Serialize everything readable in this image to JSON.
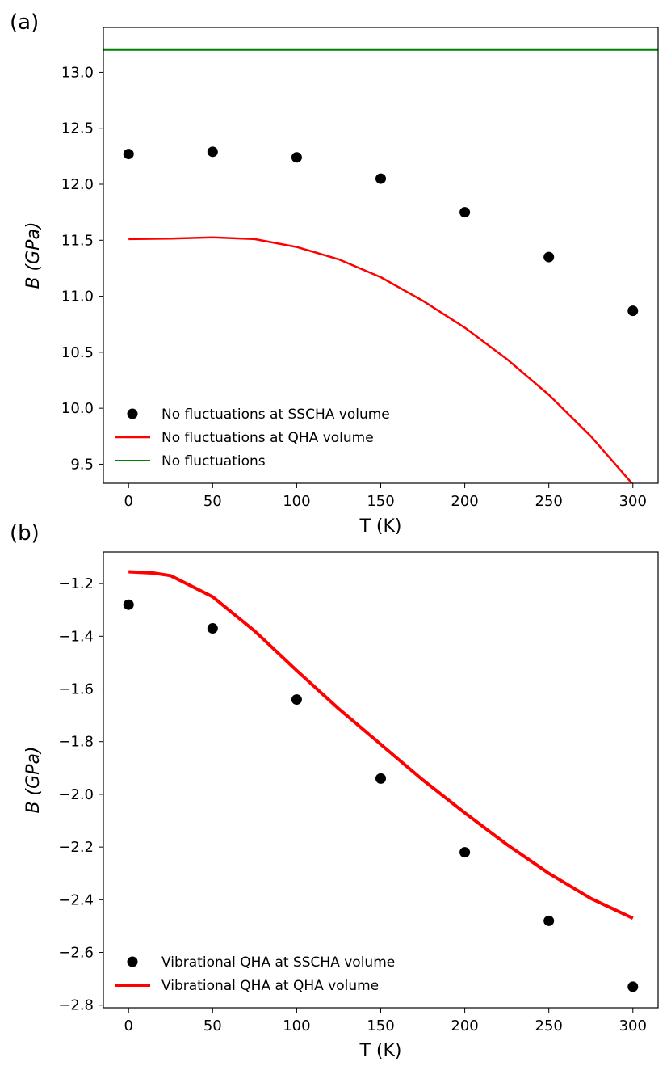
{
  "chart_data": [
    {
      "panel_label": "(a)",
      "type": "line",
      "xlabel": "T (K)",
      "ylabel": "B  (GPa)",
      "xlim": [
        -15,
        315
      ],
      "ylim": [
        9.33,
        13.4
      ],
      "xticks": [
        0,
        50,
        100,
        150,
        200,
        250,
        300
      ],
      "xtick_labels": [
        "0",
        "50",
        "100",
        "150",
        "200",
        "250",
        "300"
      ],
      "yticks": [
        9.5,
        10.0,
        10.5,
        11.0,
        11.5,
        12.0,
        12.5,
        13.0
      ],
      "ytick_labels": [
        "9.5",
        "10.0",
        "10.5",
        "11.0",
        "11.5",
        "12.0",
        "12.5",
        "13.0"
      ],
      "legend_position": "lower-left",
      "series": [
        {
          "name": "No fluctuations at SSCHA volume",
          "kind": "scatter",
          "color": "#000000",
          "x": [
            0,
            50,
            100,
            150,
            200,
            250,
            300
          ],
          "y": [
            12.27,
            12.29,
            12.24,
            12.05,
            11.75,
            11.35,
            10.87
          ]
        },
        {
          "name": "No fluctuations at QHA volume",
          "kind": "line",
          "color": "#ff0000",
          "x": [
            0,
            25,
            50,
            75,
            100,
            125,
            150,
            175,
            200,
            225,
            250,
            275,
            300
          ],
          "y": [
            11.51,
            11.515,
            11.525,
            11.51,
            11.44,
            11.33,
            11.17,
            10.96,
            10.72,
            10.44,
            10.12,
            9.75,
            9.32
          ]
        },
        {
          "name": "No fluctuations",
          "kind": "hline",
          "color": "#008000",
          "x": [
            -15,
            315
          ],
          "y": [
            13.2,
            13.2
          ]
        }
      ]
    },
    {
      "panel_label": "(b)",
      "type": "line",
      "xlabel": "T (K)",
      "ylabel": "B  (GPa)",
      "xlim": [
        -15,
        315
      ],
      "ylim": [
        -2.81,
        -1.08
      ],
      "xticks": [
        0,
        50,
        100,
        150,
        200,
        250,
        300
      ],
      "xtick_labels": [
        "0",
        "50",
        "100",
        "150",
        "200",
        "250",
        "300"
      ],
      "yticks": [
        -2.8,
        -2.6,
        -2.4,
        -2.2,
        -2.0,
        -1.8,
        -1.6,
        -1.4,
        -1.2
      ],
      "ytick_labels": [
        "−2.8",
        "−2.6",
        "−2.4",
        "−2.2",
        "−2.0",
        "−1.8",
        "−1.6",
        "−1.4",
        "−1.2"
      ],
      "legend_position": "lower-left",
      "series": [
        {
          "name": "Vibrational QHA at SSCHA volume",
          "kind": "scatter",
          "color": "#000000",
          "x": [
            0,
            50,
            100,
            150,
            200,
            250,
            300
          ],
          "y": [
            -1.28,
            -1.37,
            -1.64,
            -1.94,
            -2.22,
            -2.48,
            -2.73
          ]
        },
        {
          "name": "Vibrational QHA at QHA volume",
          "kind": "line",
          "color": "#ff0000",
          "x": [
            0,
            15,
            25,
            50,
            75,
            100,
            125,
            150,
            175,
            200,
            225,
            250,
            275,
            300
          ],
          "y": [
            -1.155,
            -1.16,
            -1.17,
            -1.25,
            -1.38,
            -1.53,
            -1.675,
            -1.81,
            -1.945,
            -2.07,
            -2.19,
            -2.3,
            -2.395,
            -2.47
          ]
        }
      ]
    }
  ]
}
